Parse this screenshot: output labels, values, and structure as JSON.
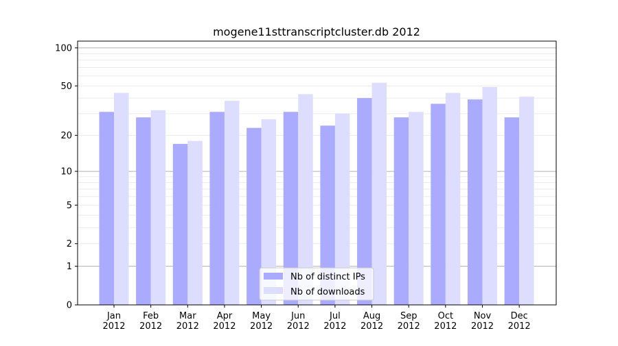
{
  "chart_data": {
    "type": "bar",
    "title": "mogene11sttranscriptcluster.db 2012",
    "xlabel": "",
    "ylabel": "",
    "yscale": "log(1+y)",
    "ylim": [
      0,
      113
    ],
    "yticks": [
      0,
      1,
      2,
      5,
      10,
      20,
      50,
      100
    ],
    "grid": true,
    "legend_position": "lower center",
    "categories": [
      "Jan\n2012",
      "Feb\n2012",
      "Mar\n2012",
      "Apr\n2012",
      "May\n2012",
      "Jun\n2012",
      "Jul\n2012",
      "Aug\n2012",
      "Sep\n2012",
      "Oct\n2012",
      "Nov\n2012",
      "Dec\n2012"
    ],
    "series": [
      {
        "name": "Nb of distinct IPs",
        "color": "#aaaaff",
        "values": [
          31,
          28,
          17,
          31,
          23,
          31,
          24,
          40,
          28,
          36,
          39,
          28
        ]
      },
      {
        "name": "Nb of downloads",
        "color": "#ddddff",
        "values": [
          44,
          32,
          18,
          38,
          27,
          43,
          30,
          53,
          31,
          44,
          49,
          41
        ]
      }
    ]
  }
}
